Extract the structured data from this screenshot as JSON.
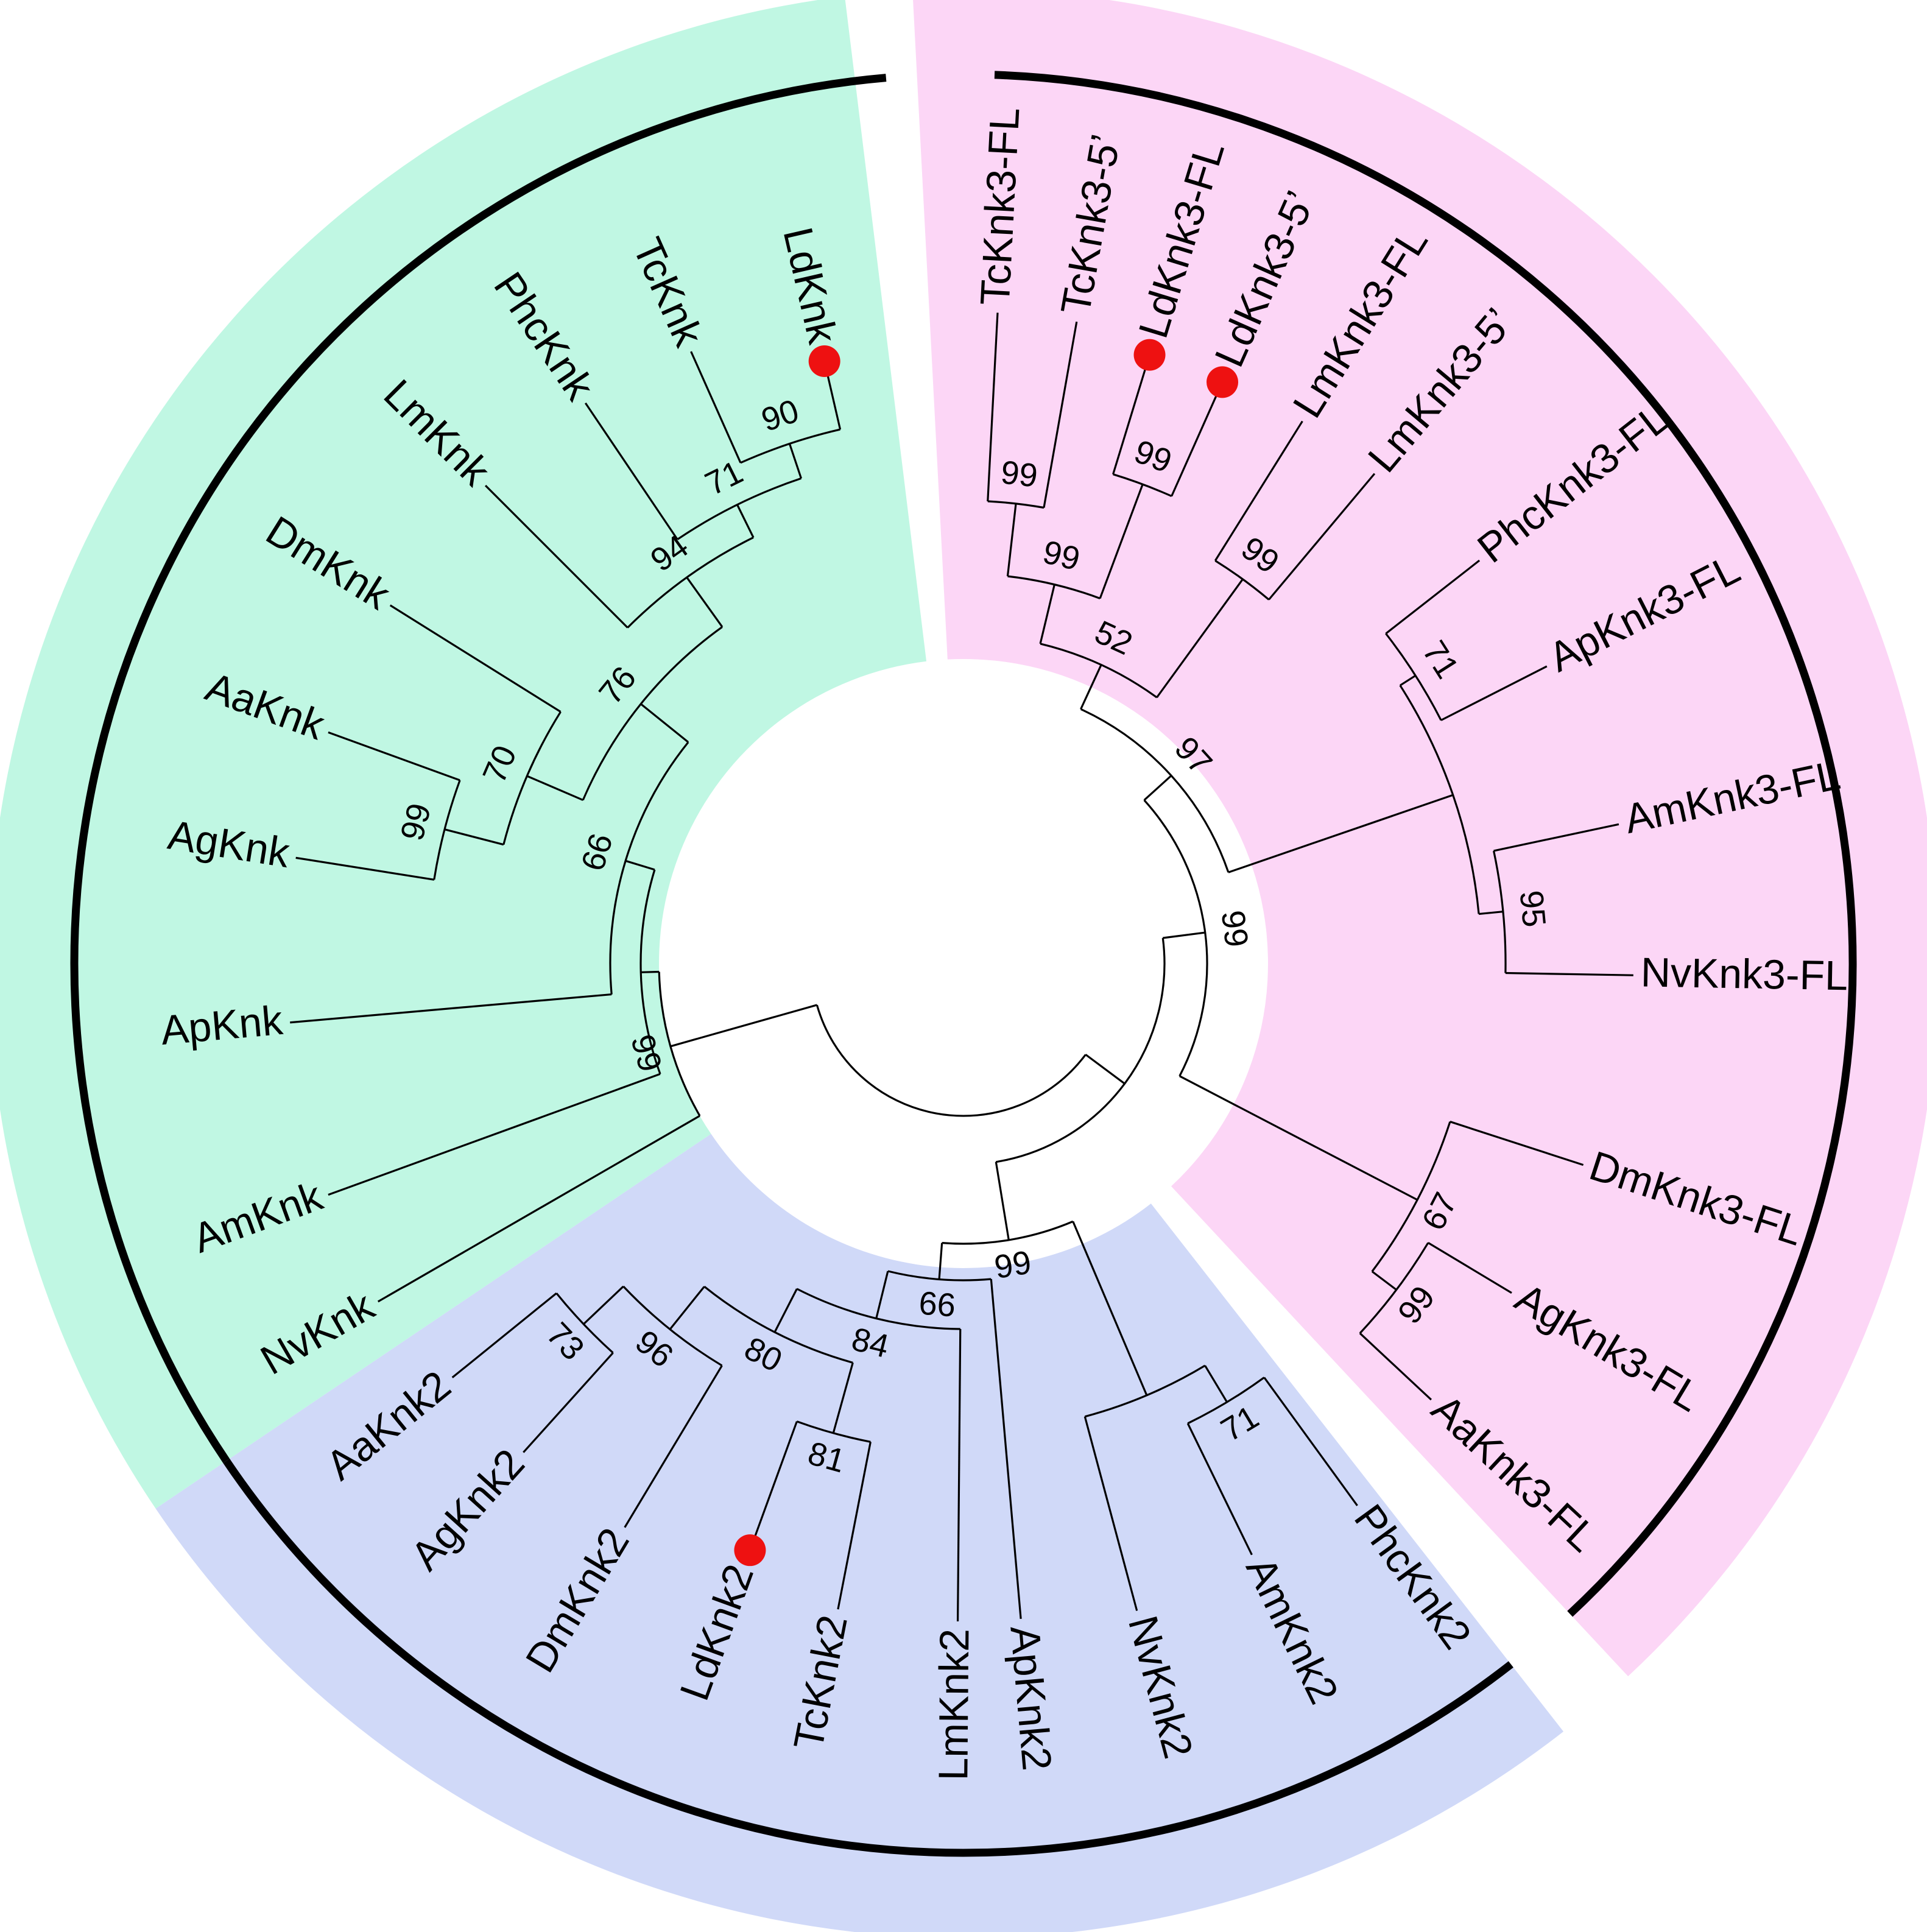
{
  "colors": {
    "knk_clade": "#c0f7e3",
    "knk2_clade": "#d0d9f8",
    "knk3_clade": "#fcd6f6",
    "highlight_marker": "#ee1111",
    "branch": "#000000"
  },
  "clades": [
    {
      "name": "Knk",
      "color_key": "knk_clade",
      "taxa": [
        "LdKnk",
        "TcKnk",
        "PhcKnk",
        "LmKnk",
        "DmKnk",
        "AaKnk",
        "AgKnk",
        "ApKnk",
        "AmKnk",
        "NvKnk"
      ]
    },
    {
      "name": "Knk2",
      "color_key": "knk2_clade",
      "taxa": [
        "AaKnk2",
        "AgKnk2",
        "DmKnk2",
        "LdKnk2",
        "TcKnk2",
        "LmKnk2",
        "ApKnk2",
        "NvKnk2",
        "AmKnk2",
        "PhcKnk2"
      ]
    },
    {
      "name": "Knk3",
      "color_key": "knk3_clade",
      "taxa": [
        "AaKnk3-FL",
        "AgKnk3-FL",
        "DmKnk3-FL",
        "NvKnk3-FL",
        "AmKnk3-FL",
        "ApKnk3-FL",
        "PhcKnk3-FL",
        "LmKnk3-5’",
        "LmKnk3-FL",
        "LdKnk3-5’",
        "LdKnk3-FL",
        "TcKnk3-5’",
        "TcKnk3-FL"
      ]
    }
  ],
  "highlighted_taxa": [
    "LdKnk",
    "LdKnk2",
    "LdKnk3-FL",
    "LdKnk3-5’"
  ],
  "bootstrap_values": {
    "LdKnk_TcKnk": "90",
    "with_PhcKnk": "71",
    "with_LmKnk": "94",
    "Aa_Ag_Knk": "99",
    "with_DmKnk": "70",
    "knk_core": "76",
    "with_ApKnk": "66",
    "knk_clade": "99",
    "Ld_Tc_Knk2": "81",
    "with_DmKnk2": "80",
    "Aa_Ag_Knk2": "73",
    "dipteran_knk2": "96",
    "with_LmKnk2": "84",
    "with_ApKnk2": "66",
    "Am_Phc_Knk2": "71",
    "knk2_clade": "99",
    "TcKnk3": "99",
    "LdKnk3": "99",
    "Tc_Ld_Knk3": "99",
    "LmKnk3": "99",
    "knk3_coleo_lm": "52",
    "Phc_Ap_Knk3": "71",
    "Am_Nv_Knk3": "95",
    "Ag_Aa_Knk3": "99",
    "with_DmKnk3": "67",
    "knk3_core": "97",
    "knk3_clade": "99"
  }
}
